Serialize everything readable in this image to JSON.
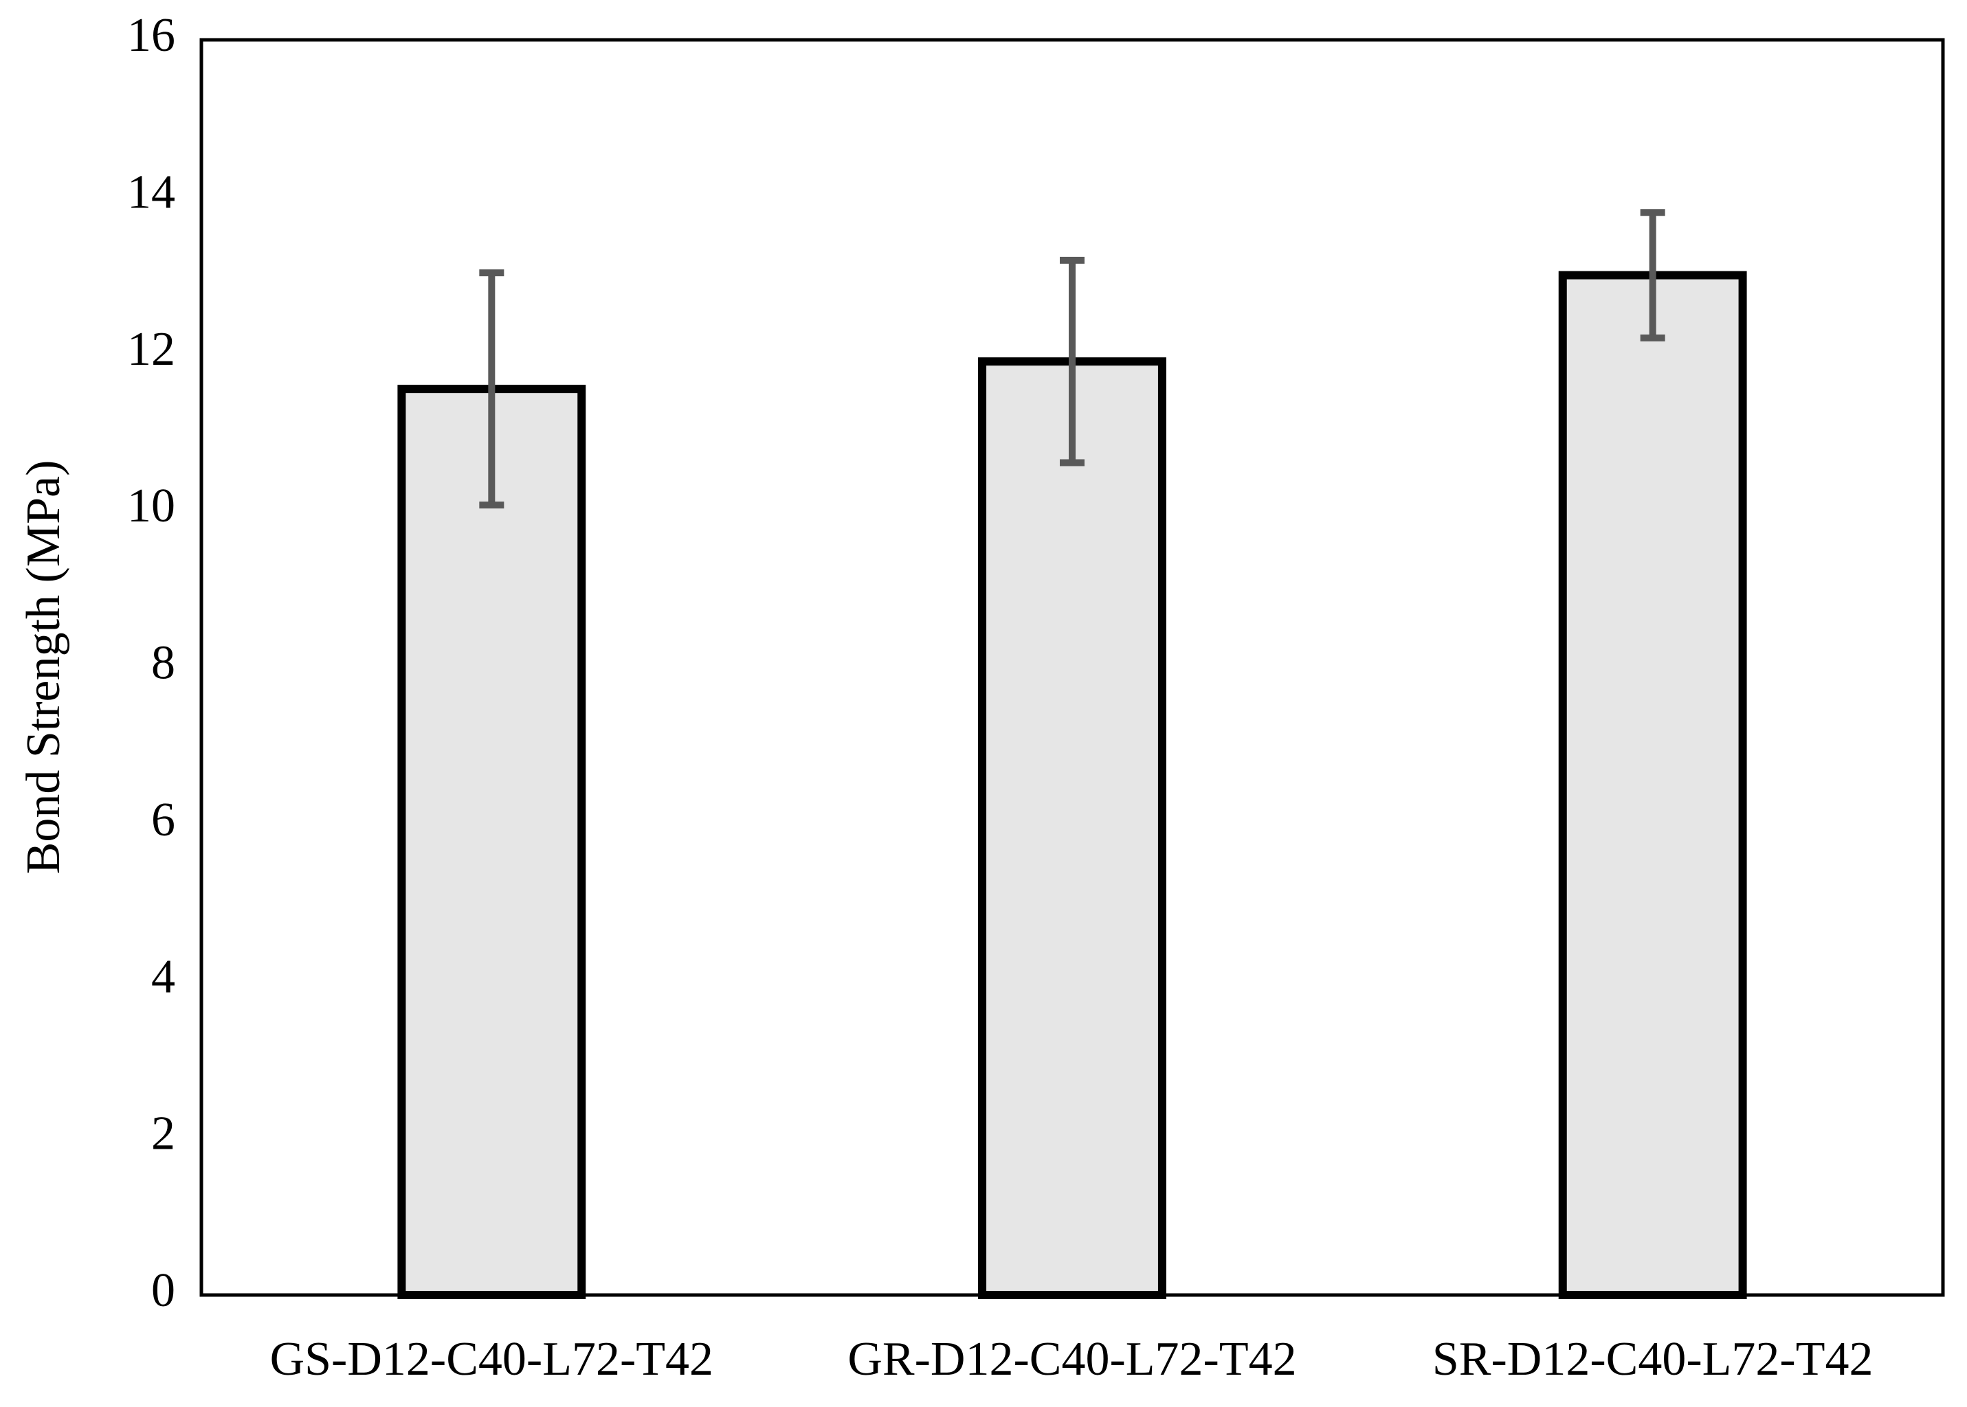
{
  "chart_data": {
    "type": "bar",
    "y_label": "Bond Strength (MPa)",
    "categories": [
      "GS-D12-C40-L72-T42",
      "GR-D12-C40-L72-T42",
      "SR-D12-C40-L72-T42"
    ],
    "values": [
      11.55,
      11.9,
      13.0
    ],
    "errors": [
      1.48,
      1.29,
      0.8
    ],
    "color": "#e6e6e6",
    "edge_color": "#000000",
    "error_color": "#595959",
    "ylim": [
      0,
      16
    ],
    "yticks": [
      0,
      2,
      4,
      6,
      8,
      10,
      12,
      14,
      16
    ],
    "grid": false
  }
}
